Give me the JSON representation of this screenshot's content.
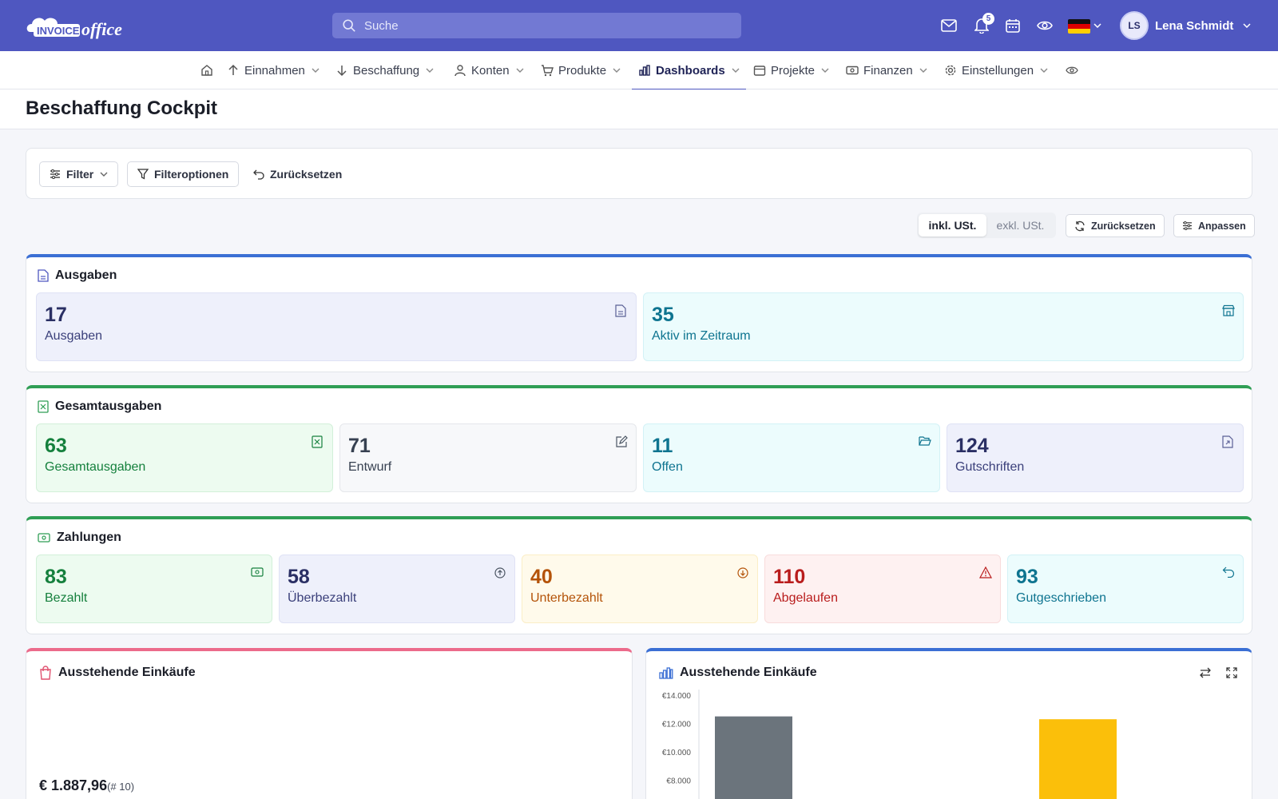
{
  "app": {
    "logo_text_1": "INVOICE",
    "logo_text_2": "office",
    "search_placeholder": "Suche",
    "notifications_count": "5",
    "user_initials": "LS",
    "user_name": "Lena Schmidt",
    "brand_color": "#4f57c0"
  },
  "nav": {
    "items": [
      {
        "label": "Einnahmen",
        "icon": "arrow-up-icon"
      },
      {
        "label": "Beschaffung",
        "icon": "arrow-down-icon"
      },
      {
        "label": "Konten",
        "icon": "user-icon"
      },
      {
        "label": "Produkte",
        "icon": "cart-icon"
      },
      {
        "label": "Dashboards",
        "icon": "bar-chart-icon",
        "active": true
      },
      {
        "label": "Projekte",
        "icon": "calendar-icon"
      },
      {
        "label": "Finanzen",
        "icon": "money-icon"
      },
      {
        "label": "Einstellungen",
        "icon": "gear-icon"
      }
    ]
  },
  "page": {
    "title": "Beschaffung Cockpit"
  },
  "filters": {
    "filter_label": "Filter",
    "options_label": "Filteroptionen",
    "reset_label": "Zurücksetzen"
  },
  "toolbar": {
    "incl_tax": "inkl. USt.",
    "excl_tax": "exkl. USt.",
    "reset_label": "Zurücksetzen",
    "customize_label": "Anpassen"
  },
  "sections": {
    "ausgaben": {
      "title": "Ausgaben",
      "tiles": [
        {
          "value": "17",
          "label": "Ausgaben"
        },
        {
          "value": "35",
          "label": "Aktiv im Zeitraum"
        }
      ]
    },
    "gesamt": {
      "title": "Gesamtausgaben",
      "tiles": [
        {
          "value": "63",
          "label": "Gesamtausgaben"
        },
        {
          "value": "71",
          "label": "Entwurf"
        },
        {
          "value": "11",
          "label": "Offen"
        },
        {
          "value": "124",
          "label": "Gutschriften"
        }
      ]
    },
    "zahlungen": {
      "title": "Zahlungen",
      "tiles": [
        {
          "value": "83",
          "label": "Bezahlt"
        },
        {
          "value": "58",
          "label": "Überbezahlt"
        },
        {
          "value": "40",
          "label": "Unterbezahlt"
        },
        {
          "value": "110",
          "label": "Abgelaufen"
        },
        {
          "value": "93",
          "label": "Gutgeschrieben"
        }
      ]
    }
  },
  "pending": {
    "title": "Ausstehende Einkäufe",
    "amount": "€ 1.887,96",
    "count": "(# 10)"
  },
  "pending_chart": {
    "title": "Ausstehende Einkäufe"
  },
  "chart_data": {
    "type": "bar",
    "yticks": [
      "€14.000",
      "€12.000",
      "€10.000",
      "€8.000"
    ],
    "ylim": [
      8000,
      14000
    ],
    "series": [
      {
        "values": [
          12500
        ],
        "color": "#6b747c"
      },
      {
        "values": [
          12300
        ],
        "color": "#fbbf0a"
      }
    ]
  }
}
